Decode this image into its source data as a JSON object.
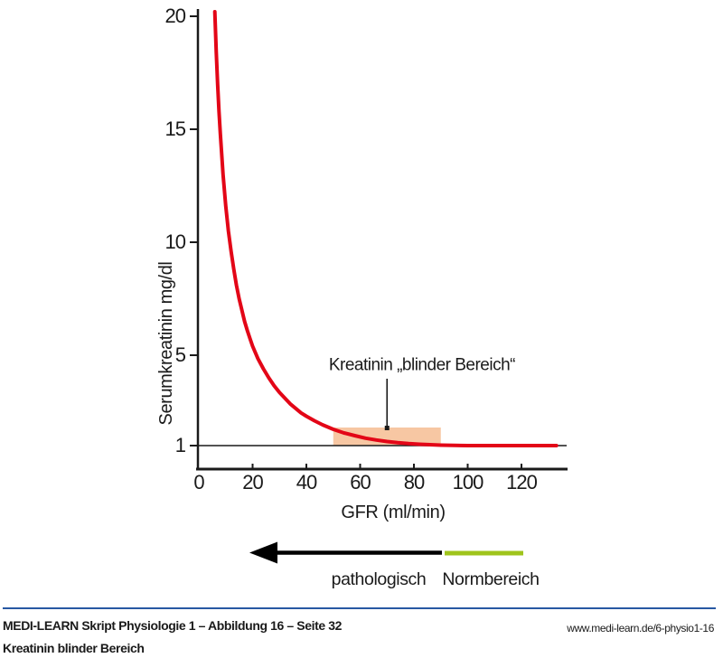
{
  "chart_data": {
    "type": "line",
    "title": "",
    "xlabel": "GFR (ml/min)",
    "ylabel": "Serumkreatinin mg/dl",
    "x_ticks": [
      0,
      20,
      40,
      60,
      80,
      100,
      120
    ],
    "y_ticks": [
      1,
      5,
      10,
      15,
      20
    ],
    "xlim": [
      0,
      137
    ],
    "ylim": [
      0,
      20.3
    ],
    "grid": "off",
    "series": [
      {
        "name": "Serumkreatinin",
        "color": "#e30617",
        "points": [
          [
            5.95,
            20.2
          ],
          [
            6.5,
            18.4
          ],
          [
            7,
            17.0
          ],
          [
            7.5,
            15.8
          ],
          [
            8,
            14.8
          ],
          [
            9,
            13.0
          ],
          [
            10,
            11.6
          ],
          [
            11,
            10.5
          ],
          [
            12,
            9.6
          ],
          [
            13,
            8.8
          ],
          [
            14,
            8.1
          ],
          [
            15,
            7.5
          ],
          [
            16,
            7.0
          ],
          [
            17,
            6.5
          ],
          [
            18,
            6.1
          ],
          [
            19,
            5.75
          ],
          [
            20,
            5.4
          ],
          [
            22,
            4.85
          ],
          [
            24,
            4.4
          ],
          [
            26,
            4.0
          ],
          [
            28,
            3.65
          ],
          [
            30,
            3.35
          ],
          [
            32,
            3.1
          ],
          [
            34,
            2.85
          ],
          [
            36,
            2.65
          ],
          [
            38,
            2.45
          ],
          [
            40,
            2.3
          ],
          [
            43,
            2.1
          ],
          [
            46,
            1.92
          ],
          [
            50,
            1.72
          ],
          [
            54,
            1.56
          ],
          [
            58,
            1.44
          ],
          [
            62,
            1.33
          ],
          [
            66,
            1.25
          ],
          [
            70,
            1.18
          ],
          [
            74,
            1.13
          ],
          [
            78,
            1.09
          ],
          [
            82,
            1.06
          ],
          [
            86,
            1.04
          ],
          [
            90,
            1.02
          ],
          [
            95,
            1.01
          ],
          [
            100,
            1.0
          ],
          [
            110,
            1.0
          ],
          [
            120,
            1.0
          ],
          [
            133,
            1.0
          ]
        ]
      }
    ],
    "baseline_value": 1,
    "blind_region": {
      "x_start": 50,
      "x_end": 90,
      "y_start": 1,
      "y_end": 1.8,
      "color": "#f7c7a3"
    },
    "annotation": {
      "label": "Kreatinin „blinder Bereich“",
      "arrow_x": 70,
      "text_x": 83,
      "text_y": 4.35
    }
  },
  "legend": {
    "pathological_label": "pathologisch",
    "normal_label": "Normbereich",
    "arrow_color": "#000000",
    "normal_color": "#9fc41c",
    "arrow_direction": "left"
  },
  "footer": {
    "source_line": "MEDI-LEARN Skript Physiologie 1 – Abbildung 16 – Seite 32",
    "caption": "Kreatinin blinder Bereich",
    "url": "www.medi-learn.de/6-physio1-16",
    "rule_color": "#2858a3"
  }
}
